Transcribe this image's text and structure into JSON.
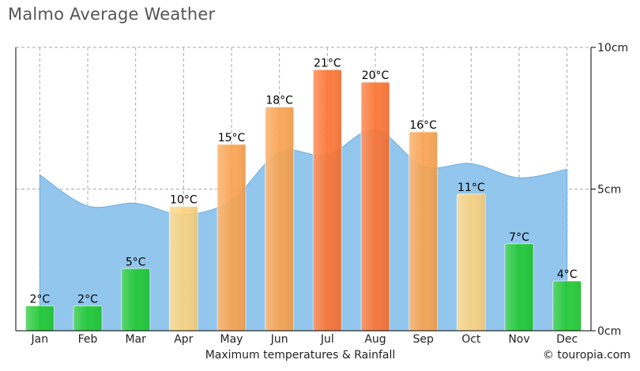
{
  "chart_data": {
    "type": "bar",
    "title": "Malmo Average Weather",
    "xlabel": "Maximum temperatures & Rainfall",
    "credit": "© touropia.com",
    "categories": [
      "Jan",
      "Feb",
      "Mar",
      "Apr",
      "May",
      "Jun",
      "Jul",
      "Aug",
      "Sep",
      "Oct",
      "Nov",
      "Dec"
    ],
    "series": [
      {
        "name": "Maximum temperatures",
        "type": "bar",
        "values": [
          2,
          2,
          5,
          10,
          15,
          18,
          21,
          20,
          16,
          11,
          7,
          4
        ],
        "labels": [
          "2°C",
          "2°C",
          "5°C",
          "10°C",
          "15°C",
          "18°C",
          "21°C",
          "20°C",
          "16°C",
          "11°C",
          "7°C",
          "4°C"
        ],
        "colors": [
          "#1ec832",
          "#1ec832",
          "#1ec832",
          "#fbd17f",
          "#f8a24e",
          "#f8a24e",
          "#fb7231",
          "#fb7231",
          "#f8a24e",
          "#fbd17f",
          "#1ec832",
          "#1ec832"
        ]
      },
      {
        "name": "Rainfall",
        "type": "area",
        "values": [
          5.5,
          4.4,
          4.5,
          4.1,
          4.6,
          6.3,
          6.2,
          7.1,
          5.8,
          5.9,
          5.4,
          5.7
        ],
        "color": "#92c6ed"
      }
    ],
    "rain_axis": {
      "label_unit": "cm",
      "range": [
        0,
        10
      ],
      "ticks": [
        "0cm",
        "5cm",
        "10cm"
      ]
    },
    "temp_axis_range": [
      0,
      22.8
    ],
    "grid": true
  }
}
